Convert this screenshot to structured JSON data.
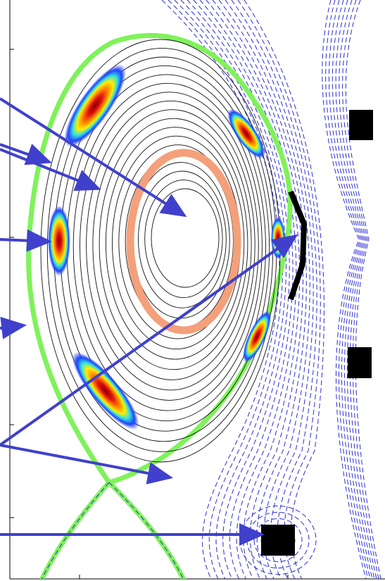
{
  "figure": {
    "title": "",
    "colors": {
      "background": "#ffffff",
      "separatrix": "#7ff25a",
      "flux_surface": "#111111",
      "vacuum_flux": "#2b2bd6",
      "arrow": "#4040cc",
      "current_ring": "#f4a07a",
      "coil": "#000000",
      "axis": "#000000"
    },
    "annotations": [
      {
        "name": "arrow-magnetic-axis"
      },
      {
        "name": "arrow-closed-surface-upper"
      },
      {
        "name": "arrow-closed-surface-inner"
      },
      {
        "name": "arrow-emission-inboard"
      },
      {
        "name": "arrow-separatrix-inboard"
      },
      {
        "name": "arrow-limiter"
      },
      {
        "name": "arrow-vacuum-field"
      },
      {
        "name": "arrow-lower-coil"
      }
    ],
    "coils": [
      "coil-upper-right",
      "coil-middle-right",
      "coil-lower"
    ],
    "icons": [
      "emission-hotspot",
      "limiter-plate"
    ]
  }
}
